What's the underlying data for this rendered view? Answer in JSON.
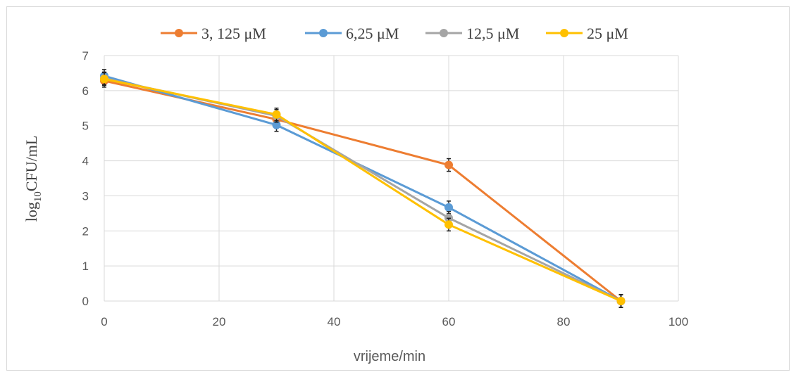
{
  "chart_data": {
    "type": "line",
    "title": "",
    "xlabel": "vrijeme/min",
    "ylabel": {
      "prefix": "log",
      "subscript": "10",
      "suffix": "CFU/mL"
    },
    "xlim": [
      0,
      100
    ],
    "ylim": [
      0,
      7
    ],
    "xticks": [
      0,
      20,
      40,
      60,
      80,
      100
    ],
    "yticks": [
      0,
      1,
      2,
      3,
      4,
      5,
      6,
      7
    ],
    "grid": true,
    "legend_position": "top",
    "x": [
      0,
      30,
      60,
      90
    ],
    "series": [
      {
        "name": "3, 125 μM",
        "color": "#ED7D31",
        "values": [
          6.28,
          5.18,
          3.88,
          0
        ]
      },
      {
        "name": "6,25 μM",
        "color": "#5B9BD5",
        "values": [
          6.42,
          5.02,
          2.67,
          0
        ]
      },
      {
        "name": "12,5 μM",
        "color": "#A5A5A5",
        "values": [
          6.35,
          5.28,
          2.37,
          0
        ]
      },
      {
        "name": "25 μM",
        "color": "#FFC000",
        "values": [
          6.33,
          5.32,
          2.18,
          0
        ]
      }
    ]
  }
}
